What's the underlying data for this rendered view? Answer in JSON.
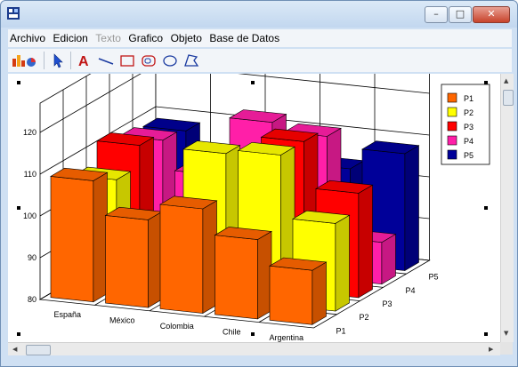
{
  "window": {
    "title": ""
  },
  "window_buttons": {
    "minimize": "–",
    "maximize": "□",
    "close": "✕"
  },
  "menu": [
    "Archivo",
    "Edicion",
    "Texto",
    "Grafico",
    "Objeto",
    "Base de Datos"
  ],
  "menu_disabled": [
    "Texto"
  ],
  "toolbar": [
    "chart-insert-icon",
    "select-arrow-icon",
    "text-tool-icon",
    "line-tool-icon",
    "rectangle-tool-icon",
    "rounded-rectangle-tool-icon",
    "ellipse-tool-icon",
    "polygon-tool-icon"
  ],
  "chart_data": {
    "type": "bar",
    "subtype": "3d-grouped",
    "categories": [
      "España",
      "México",
      "Colombia",
      "Chile",
      "Argentina"
    ],
    "depth_labels": [
      "P1",
      "P2",
      "P3",
      "P4",
      "P5"
    ],
    "ylim": [
      80,
      120
    ],
    "yticks": [
      "80",
      "90",
      "100",
      "110",
      "120"
    ],
    "series": [
      {
        "name": "P1",
        "color": "#FF6600",
        "values": [
          109,
          101,
          105,
          99,
          93
        ]
      },
      {
        "name": "P2",
        "color": "#FFFF00",
        "values": [
          106,
          90,
          115,
          116,
          101
        ]
      },
      {
        "name": "P3",
        "color": "#FF0000",
        "values": [
          111,
          90,
          108,
          116,
          105
        ]
      },
      {
        "name": "P4",
        "color": "#FF1FA8",
        "values": [
          109,
          102,
          116,
          114,
          90
        ]
      },
      {
        "name": "P5",
        "color": "#000099",
        "values": [
          108,
          96,
          98,
          103,
          108
        ]
      }
    ],
    "legend_position": "top-right",
    "grid": true
  }
}
